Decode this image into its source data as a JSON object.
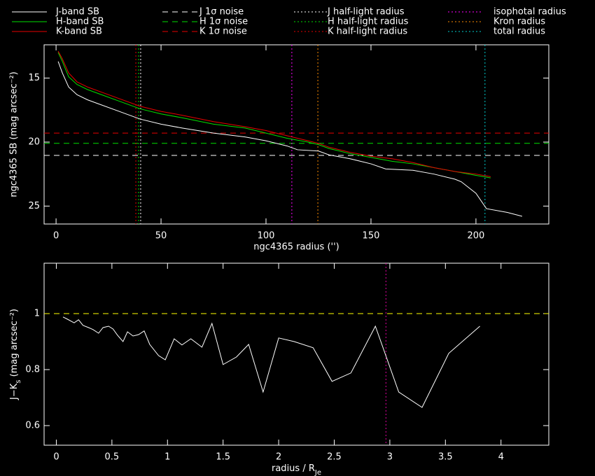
{
  "chart_data": [
    {
      "type": "line",
      "xlabel": "ngc4365 radius ('')",
      "ylabel": "ngc4365 SB (mag arcsec⁻²)",
      "xlim": [
        -5.7,
        234.7
      ],
      "ylim": [
        26.4,
        12.4
      ],
      "xticks": [
        0,
        50,
        100,
        150,
        200
      ],
      "yticks": [
        15,
        20,
        25
      ],
      "series": [
        {
          "name": "J-band SB",
          "color": "#ffffff",
          "x": [
            1,
            3,
            6,
            10,
            15,
            20,
            30,
            40,
            50,
            60,
            75,
            90,
            100,
            110,
            115,
            125,
            130,
            140,
            150,
            157,
            170,
            180,
            190,
            193,
            200,
            205,
            215,
            222
          ],
          "values": [
            13.7,
            14.6,
            15.7,
            16.3,
            16.7,
            17.0,
            17.6,
            18.2,
            18.6,
            18.9,
            19.3,
            19.6,
            19.9,
            20.3,
            20.6,
            20.7,
            21.0,
            21.3,
            21.7,
            22.1,
            22.2,
            22.5,
            22.9,
            23.1,
            24.0,
            25.2,
            25.5,
            25.8
          ]
        },
        {
          "name": "H-band SB",
          "color": "#00e000",
          "x": [
            1,
            3,
            6,
            10,
            15,
            20,
            30,
            40,
            50,
            60,
            75,
            90,
            100,
            110,
            120,
            125,
            130,
            140,
            150,
            160,
            170,
            180,
            190,
            200,
            207
          ],
          "values": [
            13.0,
            13.7,
            14.9,
            15.5,
            15.9,
            16.2,
            16.8,
            17.4,
            17.8,
            18.1,
            18.6,
            18.9,
            19.3,
            19.7,
            20.0,
            20.2,
            20.5,
            20.9,
            21.2,
            21.5,
            21.7,
            22.0,
            22.3,
            22.6,
            22.8
          ]
        },
        {
          "name": "K-band SB",
          "color": "#e80000",
          "x": [
            1,
            3,
            6,
            10,
            15,
            20,
            30,
            40,
            50,
            60,
            75,
            90,
            100,
            110,
            120,
            125,
            130,
            140,
            150,
            160,
            170,
            180,
            190,
            200,
            207
          ],
          "values": [
            12.9,
            13.5,
            14.6,
            15.3,
            15.7,
            16.0,
            16.6,
            17.2,
            17.6,
            17.9,
            18.4,
            18.8,
            19.1,
            19.5,
            19.9,
            20.1,
            20.4,
            20.8,
            21.1,
            21.3,
            21.6,
            22.0,
            22.3,
            22.5,
            22.7
          ]
        }
      ],
      "noise": [
        {
          "name": "J 1σ noise",
          "color": "#ffffff",
          "value": 21.04
        },
        {
          "name": "H 1σ noise",
          "color": "#00e000",
          "value": 20.1
        },
        {
          "name": "K 1σ noise",
          "color": "#e80000",
          "value": 19.3
        }
      ],
      "radii": [
        {
          "name": "J half-light radius",
          "color": "#ffffff",
          "value": 40.3
        },
        {
          "name": "H half-light radius",
          "color": "#00e000",
          "value": 39.3
        },
        {
          "name": "K half-light radius",
          "color": "#e80000",
          "value": 38.0
        },
        {
          "name": "isophotal radius",
          "color": "#ff00ff",
          "value": 112.3
        },
        {
          "name": "Kron radius",
          "color": "#ff8c00",
          "value": 124.7
        },
        {
          "name": "total radius",
          "color": "#00d0d0",
          "value": 204.3
        }
      ]
    },
    {
      "type": "line",
      "xlabel": [
        "radius / R",
        "Je"
      ],
      "ylabel": [
        "J−K",
        "s",
        " (mag arcsec⁻²)"
      ],
      "xlim": [
        -0.11,
        4.43
      ],
      "ylim": [
        0.53,
        1.18
      ],
      "xticks": [
        0,
        0.5,
        1,
        1.5,
        2,
        2.5,
        3,
        3.5,
        4
      ],
      "yticks": [
        0.6,
        0.8,
        1
      ],
      "series": [
        {
          "color": "#ffffff",
          "x": [
            0.06,
            0.1,
            0.16,
            0.2,
            0.24,
            0.29,
            0.33,
            0.38,
            0.42,
            0.47,
            0.51,
            0.55,
            0.6,
            0.64,
            0.69,
            0.74,
            0.79,
            0.84,
            0.92,
            0.98,
            1.06,
            1.13,
            1.21,
            1.31,
            1.4,
            1.5,
            1.62,
            1.73,
            1.86,
            2.0,
            2.14,
            2.31,
            2.48,
            2.65,
            2.87,
            3.08,
            3.29,
            3.53,
            3.81
          ],
          "values": [
            0.988,
            0.98,
            0.967,
            0.978,
            0.958,
            0.95,
            0.943,
            0.93,
            0.95,
            0.955,
            0.945,
            0.923,
            0.9,
            0.935,
            0.92,
            0.925,
            0.938,
            0.89,
            0.85,
            0.835,
            0.91,
            0.888,
            0.91,
            0.88,
            0.965,
            0.818,
            0.845,
            0.89,
            0.72,
            0.913,
            0.9,
            0.878,
            0.758,
            0.788,
            0.955,
            0.72,
            0.665,
            0.858,
            0.955
          ]
        }
      ],
      "hline": {
        "value": 1,
        "color": "#ffff00"
      },
      "vline": {
        "value": 2.965,
        "color": "#e000a0"
      }
    }
  ]
}
